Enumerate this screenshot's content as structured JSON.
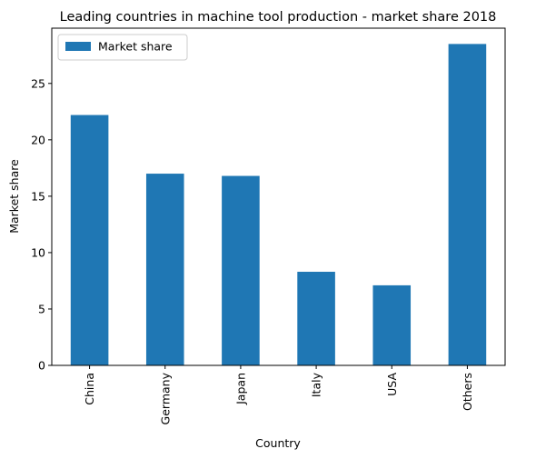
{
  "chart_data": {
    "type": "bar",
    "title": "Leading countries in machine tool production - market share 2018",
    "xlabel": "Country",
    "ylabel": "Market share",
    "categories": [
      "China",
      "Germany",
      "Japan",
      "Italy",
      "USA",
      "Others"
    ],
    "series": [
      {
        "name": "Market share",
        "color": "#1f77b4",
        "values": [
          22.2,
          17.0,
          16.8,
          8.3,
          7.1,
          28.5
        ]
      }
    ],
    "ylim": [
      0,
      29.9
    ],
    "yticks": [
      0,
      5,
      10,
      15,
      20,
      25
    ],
    "legend_position": "top-left",
    "grid": false
  }
}
